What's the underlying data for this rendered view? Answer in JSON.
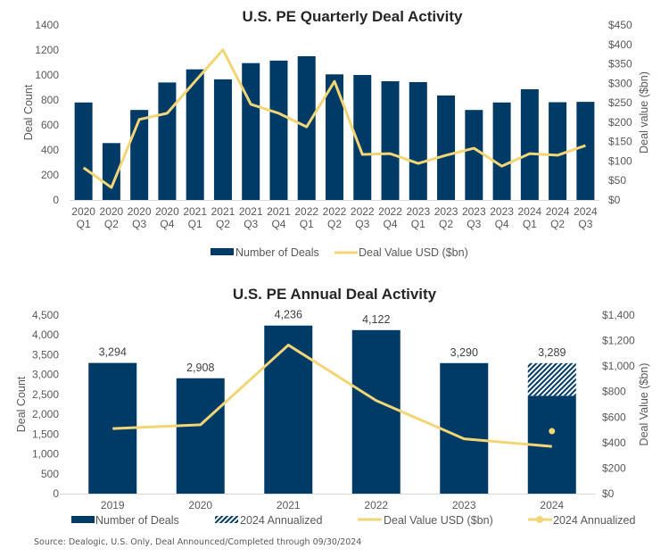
{
  "chart_data": [
    {
      "type": "bar",
      "title": "U.S. PE Quarterly Deal Activity",
      "xlabel": "",
      "ylabel": "Deal Count",
      "y2label": "Deal value ($bn)",
      "ylim": [
        0,
        1400
      ],
      "y2lim": [
        0,
        450
      ],
      "yticks": [
        "0",
        "200",
        "400",
        "600",
        "800",
        "1000",
        "1200",
        "1400"
      ],
      "y2ticks": [
        "$0",
        "$50",
        "$100",
        "$150",
        "$200",
        "$250",
        "$300",
        "$350",
        "$400",
        "$450"
      ],
      "categories": [
        [
          "2020",
          "Q1"
        ],
        [
          "2020",
          "Q2"
        ],
        [
          "2020",
          "Q3"
        ],
        [
          "2020",
          "Q4"
        ],
        [
          "2021",
          "Q1"
        ],
        [
          "2021",
          "Q2"
        ],
        [
          "2021",
          "Q3"
        ],
        [
          "2021",
          "Q4"
        ],
        [
          "2022",
          "Q1"
        ],
        [
          "2022",
          "Q2"
        ],
        [
          "2022",
          "Q3"
        ],
        [
          "2022",
          "Q4"
        ],
        [
          "2023",
          "Q1"
        ],
        [
          "2023",
          "Q2"
        ],
        [
          "2023",
          "Q3"
        ],
        [
          "2023",
          "Q4"
        ],
        [
          "2024",
          "Q1"
        ],
        [
          "2024",
          "Q2"
        ],
        [
          "2024",
          "Q3"
        ]
      ],
      "series": [
        {
          "name": "Number of Deals",
          "type": "bar",
          "axis": "left",
          "color": "#003a66",
          "values": [
            780,
            455,
            720,
            940,
            1045,
            965,
            1095,
            1115,
            1150,
            1005,
            1000,
            950,
            943,
            836,
            720,
            780,
            886,
            782,
            785
          ]
        },
        {
          "name": "Deal Value USD ($bn)",
          "type": "line",
          "axis": "right",
          "color": "#f2d675",
          "values": [
            83,
            32,
            207,
            223,
            305,
            386,
            246,
            223,
            188,
            305,
            117,
            119,
            94,
            115,
            133,
            87,
            119,
            115,
            140
          ]
        }
      ],
      "legend": {
        "position": "bottom"
      },
      "grid": false
    },
    {
      "type": "bar",
      "title": "U.S. PE Annual Deal Activity",
      "xlabel": "",
      "ylabel": "Deal Count",
      "y2label": "Deal Value ($bn)",
      "ylim": [
        0,
        4500
      ],
      "y2lim": [
        0,
        1400
      ],
      "yticks": [
        "0",
        "500",
        "1,000",
        "1,500",
        "2,000",
        "2,500",
        "3,000",
        "3,500",
        "4,000",
        "4,500"
      ],
      "y2ticks": [
        "$0",
        "$200",
        "$400",
        "$600",
        "$800",
        "$1,000",
        "$1,200",
        "$1,400"
      ],
      "categories": [
        "2019",
        "2020",
        "2021",
        "2022",
        "2023",
        "2024"
      ],
      "series": [
        {
          "name": "Number of Deals",
          "type": "bar",
          "axis": "left",
          "color": "#003a66",
          "values": [
            3294,
            2908,
            4236,
            4122,
            3290,
            2467
          ]
        },
        {
          "name": "2024 Annualized",
          "type": "bar-stacked-hatched",
          "axis": "left",
          "color": "#003a66",
          "values": [
            null,
            null,
            null,
            null,
            null,
            822
          ]
        },
        {
          "name": "Deal Value USD ($bn)",
          "type": "line",
          "axis": "right",
          "color": "#f2d675",
          "values": [
            510,
            540,
            1165,
            730,
            430,
            370
          ]
        },
        {
          "name": "2024 Annualized",
          "type": "point",
          "axis": "right",
          "color": "#f2d675",
          "values": [
            null,
            null,
            null,
            null,
            null,
            490
          ]
        }
      ],
      "data_labels": [
        "3,294",
        "2,908",
        "4,236",
        "4,122",
        "3,290",
        "3,289"
      ],
      "legend": {
        "position": "bottom"
      },
      "grid": false
    }
  ],
  "source_note": "Source: Dealogic, U.S. Only, Deal Announced/Completed through 09/30/2024"
}
